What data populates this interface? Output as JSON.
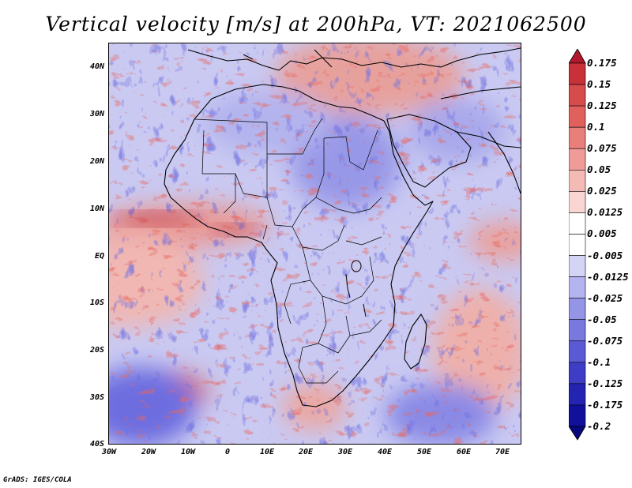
{
  "title": "Vertical velocity [m/s] at 200hPa, VT: 2021062500",
  "footer": "GrADS: IGES/COLA",
  "map": {
    "projection": "latlon",
    "lon_range": [
      -30,
      75
    ],
    "lat_range": [
      -40,
      45
    ],
    "lat_ticks": [
      "40N",
      "30N",
      "20N",
      "10N",
      "EQ",
      "10S",
      "20S",
      "30S",
      "40S"
    ],
    "lon_ticks": [
      "30W",
      "20W",
      "10W",
      "0",
      "10E",
      "20E",
      "30E",
      "40E",
      "50E",
      "60E",
      "70E"
    ],
    "field": "vertical velocity",
    "level": "200hPa",
    "valid_time": "2021062500",
    "colorbar": {
      "labels": [
        "0.175",
        "0.15",
        "0.125",
        "0.1",
        "0.075",
        "0.05",
        "0.025",
        "0.0125",
        "0.005",
        "-0.005",
        "-0.0125",
        "-0.025",
        "-0.05",
        "-0.075",
        "-0.1",
        "-0.125",
        "-0.175",
        "-0.2"
      ],
      "colors": [
        "#b2182b",
        "#c8313a",
        "#d64b4b",
        "#e0605e",
        "#e87f7b",
        "#ef9c98",
        "#f4bab6",
        "#f9d6d3",
        "#ffffff",
        "#ffffff",
        "#d4d4f7",
        "#b4b4f0",
        "#9595e8",
        "#7878df",
        "#5a5ad4",
        "#3d3dc6",
        "#2424b3",
        "#10109a",
        "#08087e"
      ],
      "extend": "both"
    }
  }
}
